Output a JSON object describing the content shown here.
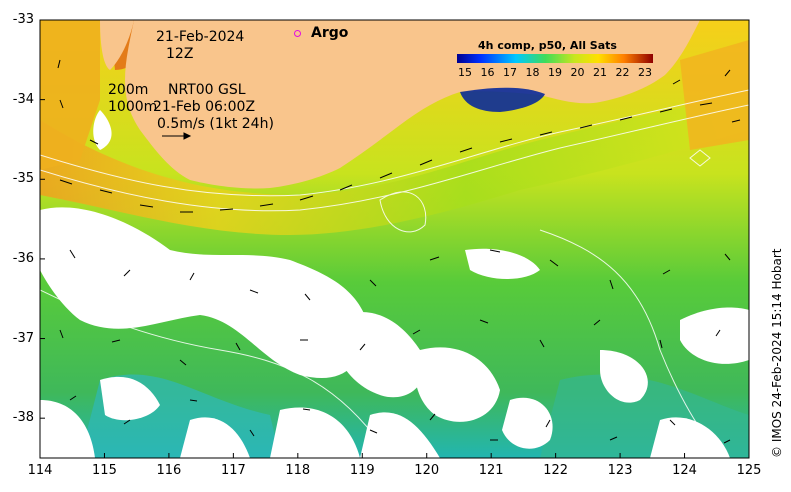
{
  "map": {
    "date_line": "21-Feb-2024",
    "time_line": "12Z",
    "legend_argo": "Argo",
    "depth_line_1": "200m",
    "depth_line_2": "1000m",
    "model_label": "NRT00 GSL",
    "model_time": "21-Feb 06:00Z",
    "scale_text": "0.5m/s (1kt 24h)",
    "colorbar_title": "4h comp, p50, All Sats",
    "colorbar_ticks": [
      "15",
      "16",
      "17",
      "18",
      "19",
      "20",
      "21",
      "22",
      "23"
    ],
    "colorbar_range": [
      15,
      23
    ],
    "credit": "© IMOS 24-Feb-2024 15:14 Hobart",
    "x_ticks": [
      "114",
      "115",
      "116",
      "117",
      "118",
      "119",
      "120",
      "121",
      "122",
      "123",
      "124",
      "125"
    ],
    "y_ticks": [
      "-33",
      "-34",
      "-35",
      "-36",
      "-37",
      "-38"
    ],
    "lon_range": [
      114,
      125
    ],
    "lat_range": [
      -38.5,
      -33
    ],
    "colors": {
      "land": "#f9c58c",
      "cloud": "#ffffff",
      "argo_marker": "#e010e0"
    }
  }
}
